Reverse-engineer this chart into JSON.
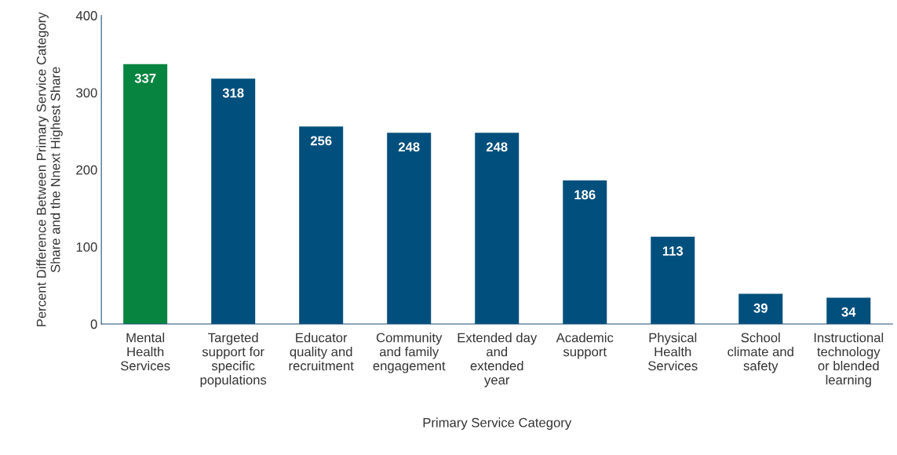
{
  "chart_data": {
    "type": "bar",
    "categories": [
      "Mental\nHealth\nServices",
      "Targeted\nsupport for\nspecific\npopulations",
      "Educator\nquality and\nrecruitment",
      "Community\nand family\nengagement",
      "Extended day\nand\nextended\nyear",
      "Academic\nsupport",
      "Physical\nHealth\nServices",
      "School\nclimate and\nsafety",
      "Instructional\ntechnology\nor blended\nlearning"
    ],
    "values": [
      337,
      318,
      256,
      248,
      248,
      186,
      113,
      39,
      34
    ],
    "colors": [
      "#07843f",
      "#004f7c",
      "#004f7c",
      "#004f7c",
      "#004f7c",
      "#004f7c",
      "#004f7c",
      "#004f7c",
      "#004f7c"
    ],
    "xlabel": "Primary Service Category",
    "ylabel": "Percent Difference Between Primary Service Category\nShare and the Nnext Highest Share",
    "ylim": [
      0,
      400
    ],
    "yticks": [
      0,
      100,
      200,
      300,
      400
    ],
    "grid": false,
    "legend": false,
    "data_labels": true
  }
}
